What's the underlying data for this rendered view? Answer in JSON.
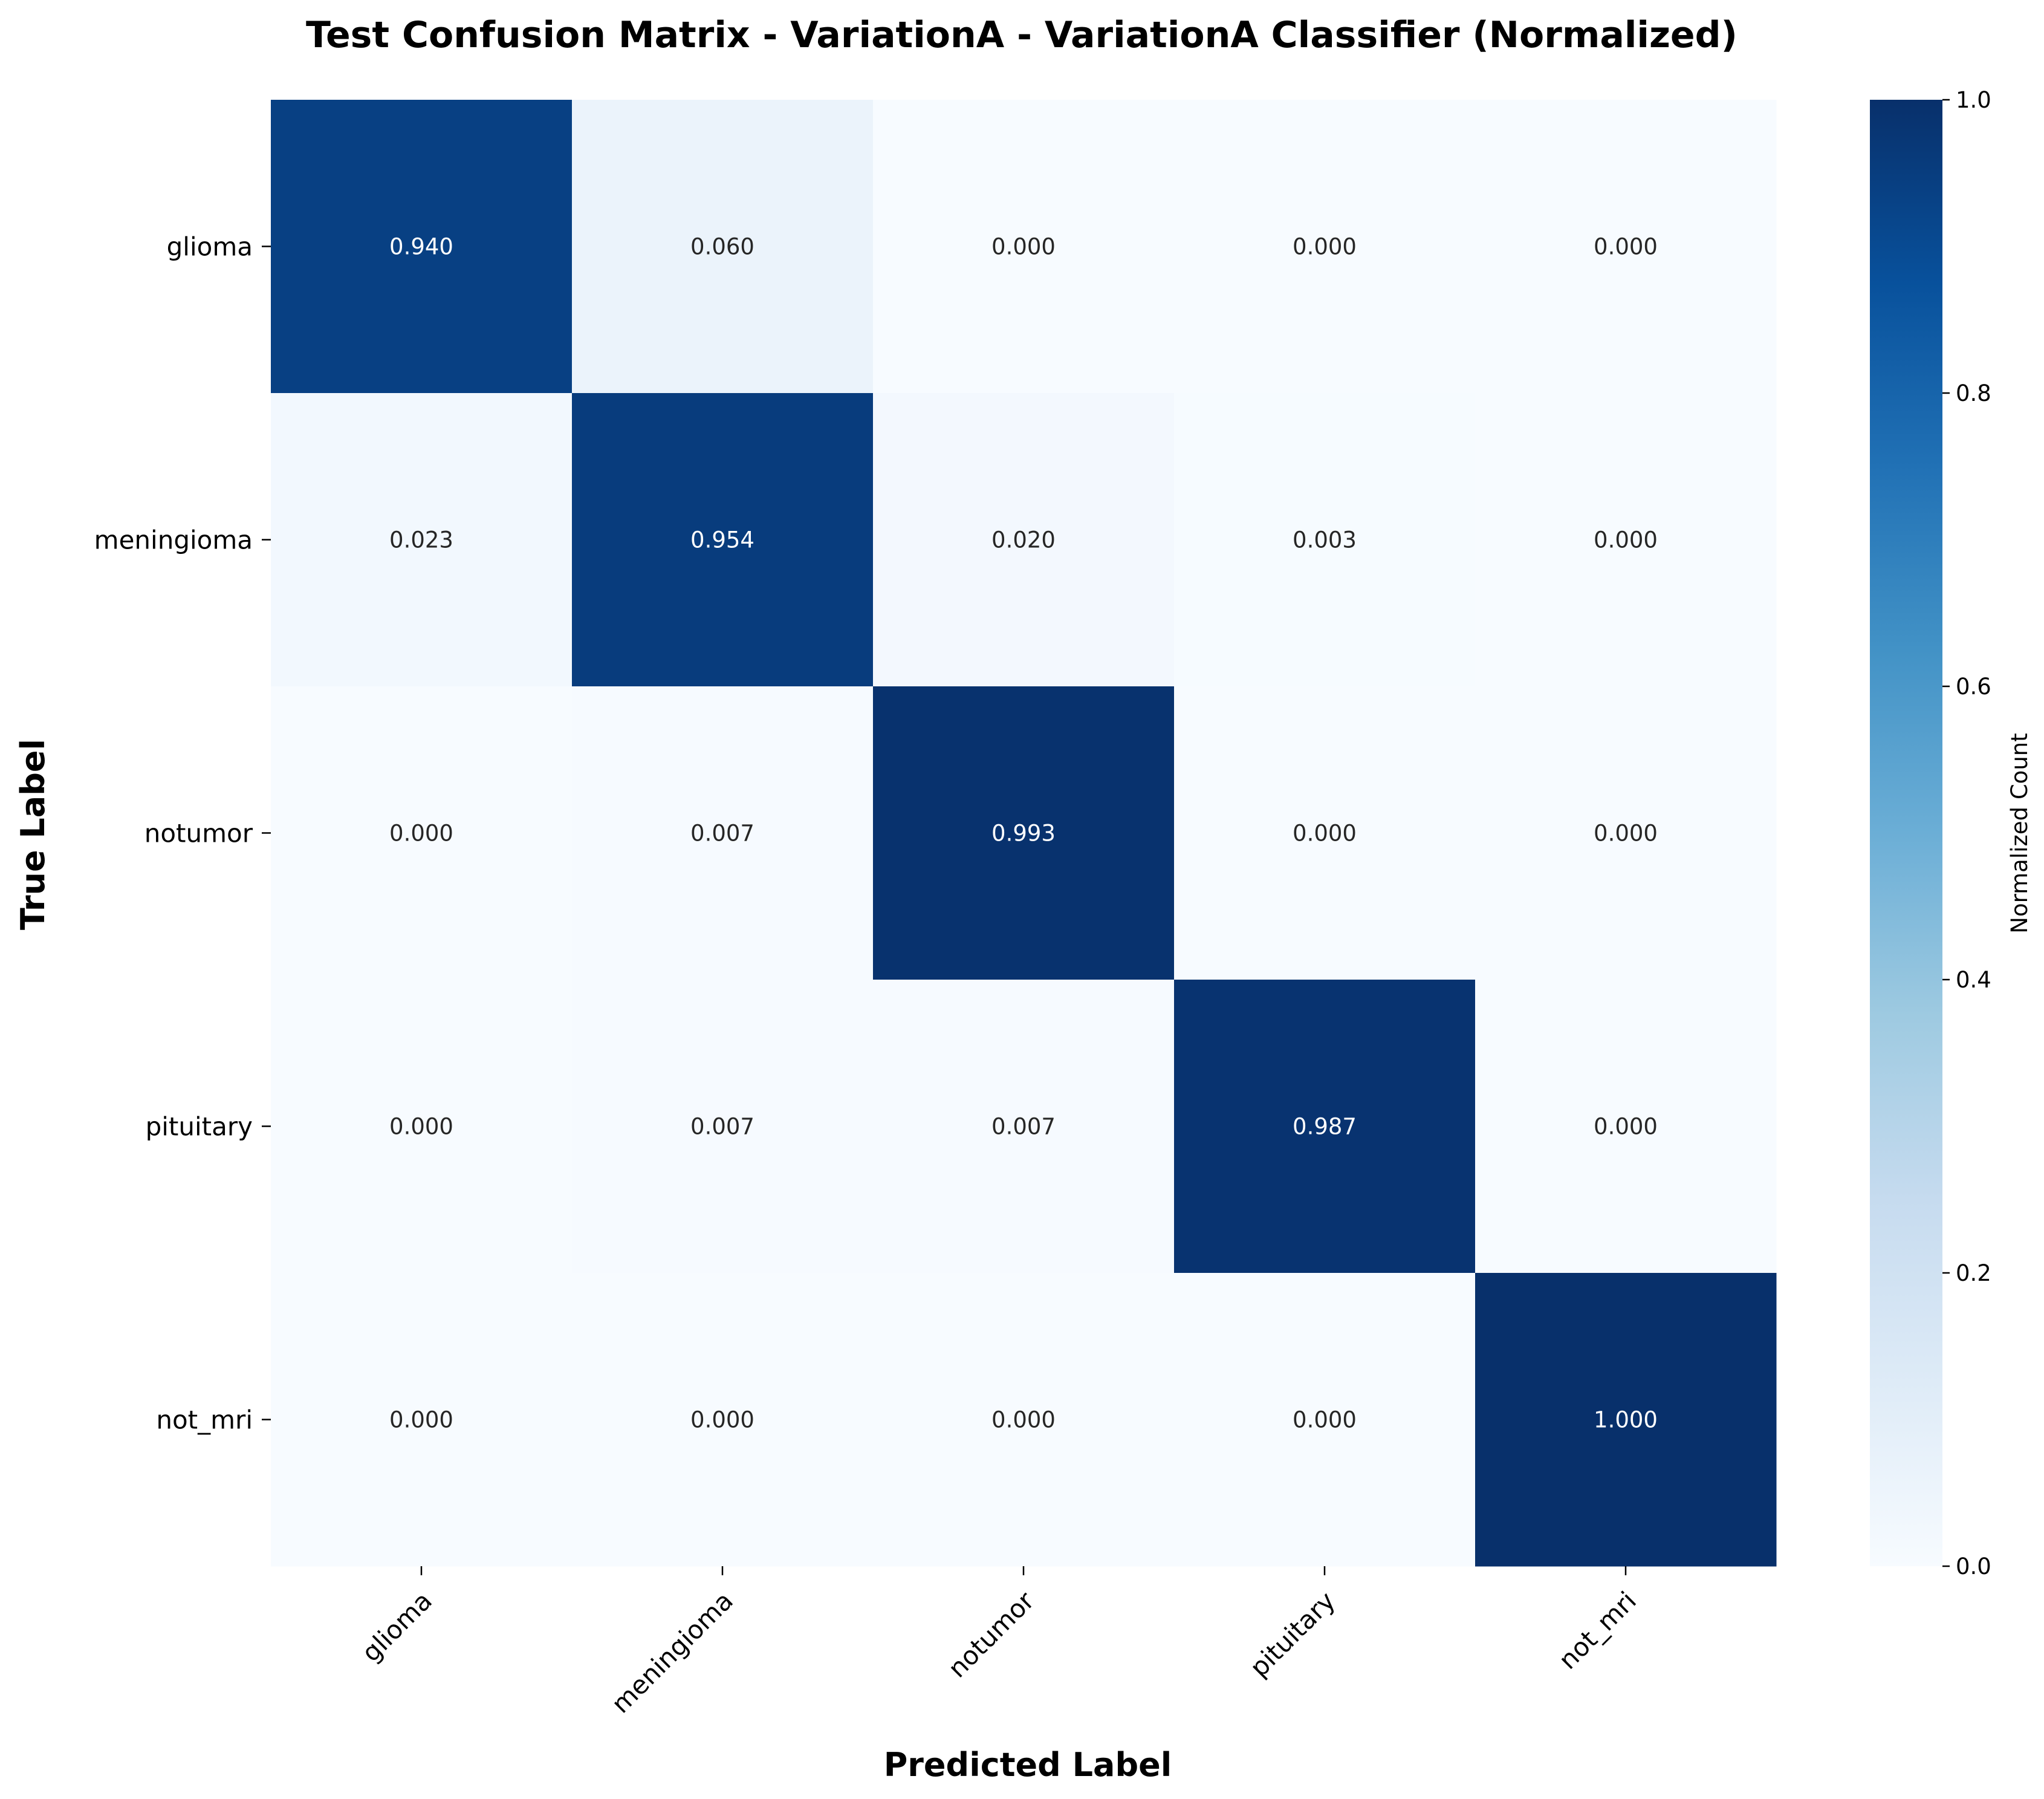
{
  "chart_data": {
    "type": "heatmap",
    "title": "Test Confusion Matrix - VariationA - VariationA Classifier (Normalized)",
    "xlabel": "Predicted Label",
    "ylabel": "True Label",
    "x_categories": [
      "glioma",
      "meningioma",
      "notumor",
      "pituitary",
      "not_mri"
    ],
    "y_categories": [
      "glioma",
      "meningioma",
      "notumor",
      "pituitary",
      "not_mri"
    ],
    "values": [
      [
        0.94,
        0.06,
        0.0,
        0.0,
        0.0
      ],
      [
        0.023,
        0.954,
        0.02,
        0.003,
        0.0
      ],
      [
        0.0,
        0.007,
        0.993,
        0.0,
        0.0
      ],
      [
        0.0,
        0.007,
        0.007,
        0.987,
        0.0
      ],
      [
        0.0,
        0.0,
        0.0,
        0.0,
        1.0
      ]
    ],
    "colormap": "Blues",
    "colorbar": {
      "label": "Normalized Count",
      "range": [
        0.0,
        1.0
      ],
      "ticks": [
        "0.0",
        "0.2",
        "0.4",
        "0.6",
        "0.8",
        "1.0"
      ]
    }
  }
}
